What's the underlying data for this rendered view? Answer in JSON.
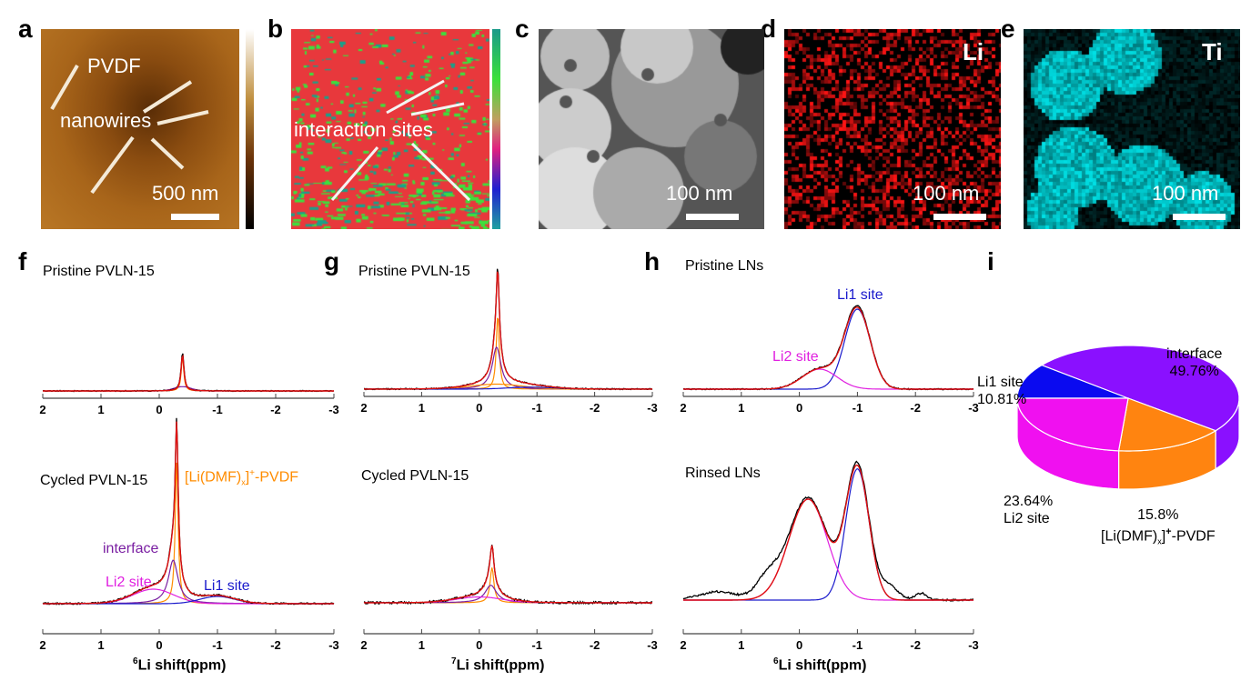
{
  "panels": {
    "a": {
      "letter": "a",
      "labels": [
        "PVDF",
        "nanowires"
      ],
      "scale_bar": "500 nm"
    },
    "b": {
      "letter": "b",
      "labels": [
        "interaction sites"
      ]
    },
    "c": {
      "letter": "c",
      "scale_bar": "100 nm"
    },
    "d": {
      "letter": "d",
      "element": "Li",
      "scale_bar": "100 nm",
      "color": "#e0141c"
    },
    "e": {
      "letter": "e",
      "element": "Ti",
      "scale_bar": "100 nm",
      "color": "#19d8dc"
    },
    "f": {
      "letter": "f"
    },
    "g": {
      "letter": "g"
    },
    "h": {
      "letter": "h"
    },
    "i": {
      "letter": "i"
    }
  },
  "chart_data": [
    {
      "type": "line",
      "panel": "f",
      "subtitle": "Pristine PVLN-15",
      "xlim": [
        2,
        -3
      ],
      "xticks": [
        "2",
        "1",
        "0",
        "-1",
        "-2",
        "-3"
      ],
      "xlabel": "",
      "ylim": [
        0,
        1
      ],
      "components": [
        {
          "color": "#000000",
          "role": "experimental",
          "center": -0.4,
          "height": 0.45,
          "width": 0.03,
          "shape": "lorentz"
        },
        {
          "color": "#e01010",
          "role": "fit",
          "center": -0.4,
          "height": 0.42,
          "width": 0.03,
          "shape": "lorentz"
        },
        {
          "color": "#ff8c00",
          "center": -0.4,
          "height": 0.4,
          "width": 0.025,
          "shape": "lorentz"
        },
        {
          "color": "#7a1fa2",
          "center": -0.4,
          "height": 0.05,
          "width": 0.15,
          "shape": "gauss"
        }
      ]
    },
    {
      "type": "line",
      "panel": "f",
      "subtitle": "Cycled PVLN-15",
      "xlim": [
        2,
        -3
      ],
      "xticks": [
        "2",
        "1",
        "0",
        "-1",
        "-2",
        "-3"
      ],
      "xlabel": "Li shift(ppm)",
      "xlabel_isotope": "6",
      "ylim": [
        0,
        1
      ],
      "annotations": [
        {
          "text": "[Li(DMF)",
          "sub": "x",
          "sup": "+",
          "tail": "-PVDF",
          "color": "#ff8c00"
        },
        {
          "text": "interface",
          "color": "#7a1fa2"
        },
        {
          "text": "Li2 site",
          "color": "#e020e0"
        },
        {
          "text": "Li1 site",
          "color": "#1a1acc"
        }
      ],
      "components": [
        {
          "color": "#ff8c00",
          "name": "[Li(DMF)x]+-PVDF",
          "center": -0.3,
          "height": 0.98,
          "width": 0.03,
          "shape": "lorentz"
        },
        {
          "color": "#7a1fa2",
          "name": "interface",
          "center": -0.24,
          "height": 0.3,
          "width": 0.1,
          "shape": "lorentz"
        },
        {
          "color": "#e020e0",
          "name": "Li2 site",
          "center": 0.1,
          "height": 0.1,
          "width": 0.35,
          "shape": "gauss"
        },
        {
          "color": "#1a1acc",
          "name": "Li1 site",
          "center": -1.0,
          "height": 0.05,
          "width": 0.3,
          "shape": "gauss"
        }
      ]
    },
    {
      "type": "line",
      "panel": "g",
      "subtitle": "Pristine PVLN-15",
      "xlim": [
        2,
        -3
      ],
      "xticks": [
        "2",
        "1",
        "0",
        "-1",
        "-2",
        "-3"
      ],
      "xlabel": "",
      "ylim": [
        0,
        1
      ],
      "components": [
        {
          "color": "#ff8c00",
          "center": -0.32,
          "height": 0.75,
          "width": 0.03,
          "shape": "lorentz"
        },
        {
          "color": "#7a1fa2",
          "center": -0.3,
          "height": 0.42,
          "width": 0.09,
          "shape": "lorentz"
        },
        {
          "color": "#ff8c00",
          "center": -0.3,
          "height": 0.05,
          "width": 0.45,
          "shape": "gauss"
        },
        {
          "color": "#1a1acc",
          "center": -0.9,
          "height": 0.02,
          "width": 0.4,
          "shape": "gauss"
        }
      ]
    },
    {
      "type": "line",
      "panel": "g",
      "subtitle": "Cycled PVLN-15",
      "xlim": [
        2,
        -3
      ],
      "xticks": [
        "2",
        "1",
        "0",
        "-1",
        "-2",
        "-3"
      ],
      "xlabel": "Li shift(ppm)",
      "xlabel_isotope": "7",
      "ylim": [
        0,
        1
      ],
      "components": [
        {
          "color": "#ff8c00",
          "center": -0.22,
          "height": 0.18,
          "width": 0.04,
          "shape": "lorentz"
        },
        {
          "color": "#7a1fa2",
          "center": -0.2,
          "height": 0.09,
          "width": 0.12,
          "shape": "lorentz"
        },
        {
          "color": "#e020e0",
          "center": 0.0,
          "height": 0.03,
          "width": 0.4,
          "shape": "gauss"
        }
      ]
    },
    {
      "type": "line",
      "panel": "h",
      "subtitle": "Pristine LNs",
      "xlim": [
        2,
        -3
      ],
      "xticks": [
        "2",
        "1",
        "0",
        "-1",
        "-2",
        "-3"
      ],
      "xlabel": "",
      "ylim": [
        0,
        1
      ],
      "annotations": [
        {
          "text": "Li1 site",
          "color": "#1a1acc"
        },
        {
          "text": "Li2 site",
          "color": "#e020e0"
        }
      ],
      "components": [
        {
          "color": "#1a1acc",
          "name": "Li1 site",
          "center": -1.0,
          "height": 0.8,
          "width": 0.22,
          "shape": "gauss"
        },
        {
          "color": "#e020e0",
          "name": "Li2 site",
          "center": -0.35,
          "height": 0.2,
          "width": 0.3,
          "shape": "gauss"
        }
      ]
    },
    {
      "type": "line",
      "panel": "h",
      "subtitle": "Rinsed LNs",
      "xlim": [
        2,
        -3
      ],
      "xticks": [
        "2",
        "1",
        "0",
        "-1",
        "-2",
        "-3"
      ],
      "xlabel": "Li shift(ppm)",
      "xlabel_isotope": "6",
      "ylim": [
        0,
        1
      ],
      "components": [
        {
          "color": "#1a1acc",
          "name": "Li1 site",
          "center": -1.0,
          "height": 0.78,
          "width": 0.2,
          "shape": "gauss"
        },
        {
          "color": "#e020e0",
          "name": "Li2 site",
          "center": -0.15,
          "height": 0.6,
          "width": 0.33,
          "shape": "gauss"
        }
      ]
    },
    {
      "type": "pie",
      "panel": "i",
      "style": "3d",
      "slices": [
        {
          "label": "Li1 site",
          "value": 10.81,
          "display": "10.81%",
          "color": "#0a0af0"
        },
        {
          "label": "interface",
          "value": 49.76,
          "display": "49.76%",
          "color": "#8a10ff"
        },
        {
          "label": "[Li(DMF)x]+-PVDF",
          "label_main": "[Li(DMF)",
          "label_sub": "x",
          "label_sup": "+",
          "label_tail": "-PVDF",
          "value": 15.8,
          "display": "15.8%",
          "color": "#ff8410"
        },
        {
          "label": "Li2 site",
          "value": 23.64,
          "display": "23.64%",
          "color": "#f010f0"
        }
      ]
    }
  ]
}
